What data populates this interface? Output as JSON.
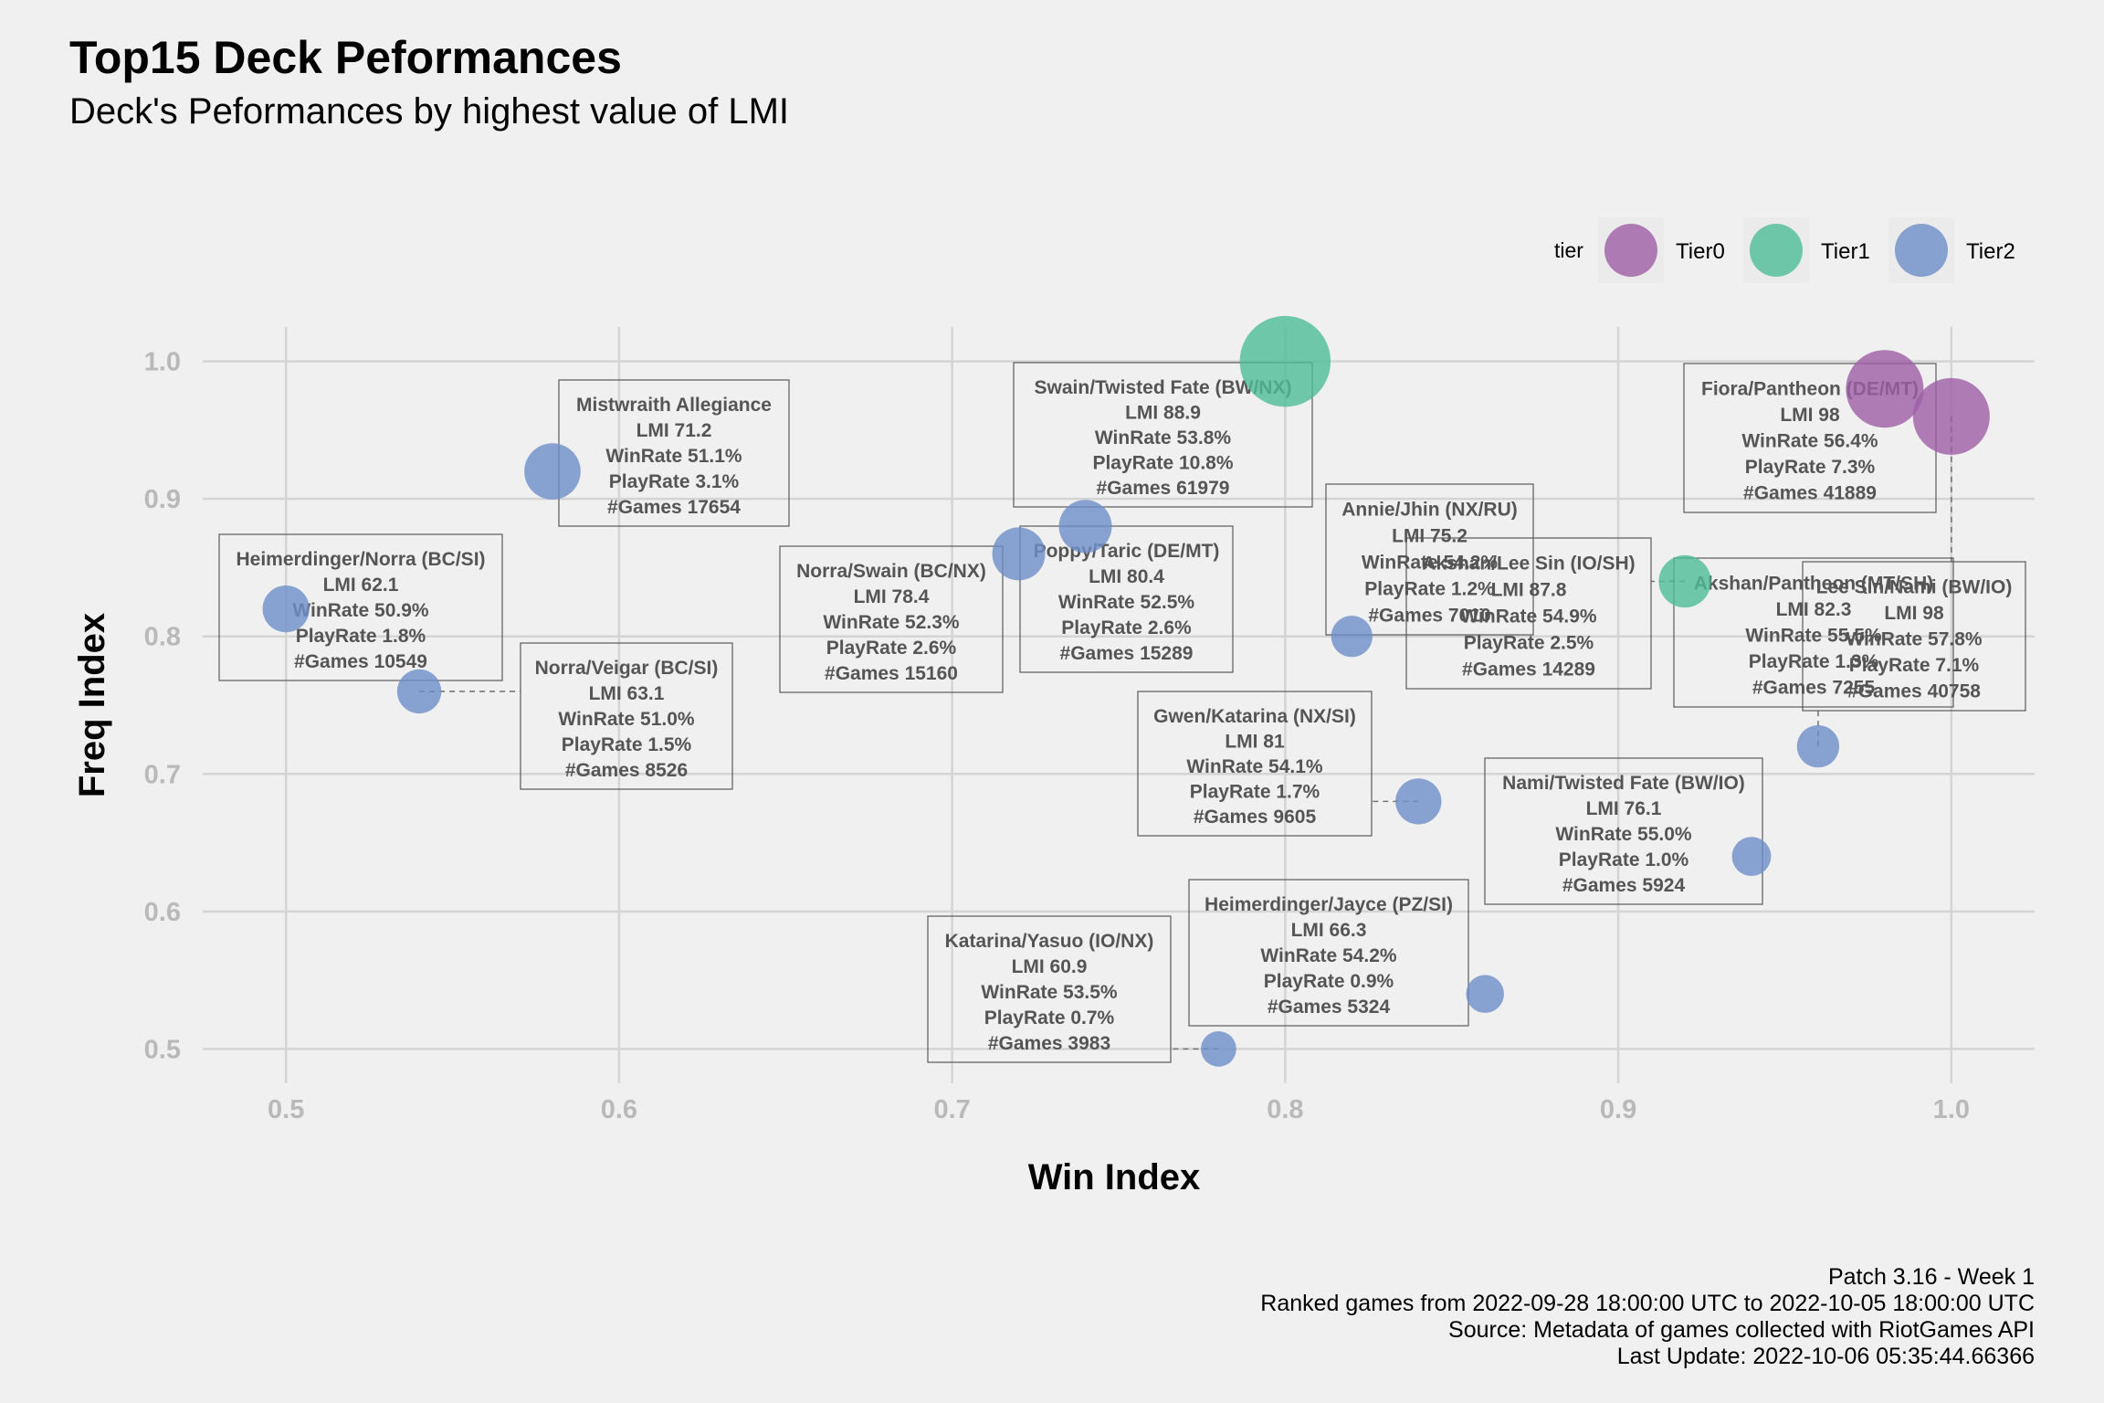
{
  "chart_data": {
    "type": "scatter",
    "title": "Top15 Deck Peformances",
    "subtitle": "Deck's Peformances by highest value of LMI",
    "xlabel": "Win Index",
    "ylabel": "Freq Index",
    "xlim": [
      0.475,
      1.025
    ],
    "ylim": [
      0.475,
      1.025
    ],
    "xticks": [
      "0.5",
      "0.6",
      "0.7",
      "0.8",
      "0.9",
      "1.0"
    ],
    "yticks": [
      "0.5",
      "0.6",
      "0.7",
      "0.8",
      "0.9",
      "1.0"
    ],
    "grid": true,
    "legend": {
      "title": "tier",
      "placement": "top-right",
      "entries": [
        {
          "name": "Tier0",
          "color": "#9e5ea6"
        },
        {
          "name": "Tier1",
          "color": "#4dbd97"
        },
        {
          "name": "Tier2",
          "color": "#6d8fc8"
        }
      ]
    },
    "points": [
      {
        "deck": "Lee Sin/Nami (BW/IO)",
        "x": 1.0,
        "y": 0.96,
        "tier": "Tier0",
        "playrate": 7.1,
        "lines": [
          "Lee Sin/Nami (BW/IO)",
          "LMI 98",
          "WinRate 57.8%",
          "PlayRate 7.1%",
          "#Games 40758"
        ]
      },
      {
        "deck": "Fiora/Pantheon (DE/MT)",
        "x": 0.98,
        "y": 0.98,
        "tier": "Tier0",
        "playrate": 7.3,
        "lines": [
          "Fiora/Pantheon (DE/MT)",
          "LMI 98",
          "WinRate 56.4%",
          "PlayRate 7.3%",
          "#Games 41889"
        ]
      },
      {
        "deck": "Swain/Twisted Fate (BW/NX)",
        "x": 0.8,
        "y": 1.0,
        "tier": "Tier1",
        "playrate": 10.8,
        "lines": [
          "Swain/Twisted Fate (BW/NX)",
          "LMI 88.9",
          "WinRate 53.8%",
          "PlayRate 10.8%",
          "#Games 61979"
        ]
      },
      {
        "deck": "Akshan/Lee Sin (IO/SH)",
        "x": 0.92,
        "y": 0.84,
        "tier": "Tier1",
        "playrate": 2.5,
        "lines": [
          "Akshan/Lee Sin (IO/SH)",
          "LMI 87.8",
          "WinRate 54.9%",
          "PlayRate 2.5%",
          "#Games 14289"
        ]
      },
      {
        "deck": "Akshan/Pantheon (MT/SH)",
        "x": 0.96,
        "y": 0.72,
        "tier": "Tier2",
        "playrate": 1.3,
        "lines": [
          "Akshan/Pantheon (MT/SH)",
          "LMI 82.3",
          "WinRate 55.5%",
          "PlayRate 1.3%",
          "#Games 7255"
        ]
      },
      {
        "deck": "Gwen/Katarina (NX/SI)",
        "x": 0.84,
        "y": 0.68,
        "tier": "Tier2",
        "playrate": 1.7,
        "lines": [
          "Gwen/Katarina (NX/SI)",
          "LMI 81",
          "WinRate 54.1%",
          "PlayRate 1.7%",
          "#Games 9605"
        ]
      },
      {
        "deck": "Poppy/Taric (DE/MT)",
        "x": 0.74,
        "y": 0.88,
        "tier": "Tier2",
        "playrate": 2.6,
        "lines": [
          "Poppy/Taric (DE/MT)",
          "LMI 80.4",
          "WinRate 52.5%",
          "PlayRate 2.6%",
          "#Games 15289"
        ]
      },
      {
        "deck": "Norra/Swain (BC/NX)",
        "x": 0.72,
        "y": 0.86,
        "tier": "Tier2",
        "playrate": 2.6,
        "lines": [
          "Norra/Swain (BC/NX)",
          "LMI 78.4",
          "WinRate 52.3%",
          "PlayRate 2.6%",
          "#Games 15160"
        ]
      },
      {
        "deck": "Nami/Twisted Fate (BW/IO)",
        "x": 0.94,
        "y": 0.64,
        "tier": "Tier2",
        "playrate": 1.0,
        "lines": [
          "Nami/Twisted Fate (BW/IO)",
          "LMI 76.1",
          "WinRate 55.0%",
          "PlayRate 1.0%",
          "#Games 5924"
        ]
      },
      {
        "deck": "Annie/Jhin (NX/RU)",
        "x": 0.82,
        "y": 0.8,
        "tier": "Tier2",
        "playrate": 1.2,
        "lines": [
          "Annie/Jhin (NX/RU)",
          "LMI 75.2",
          "WinRate 54.2%",
          "PlayRate 1.2%",
          "#Games 7010"
        ]
      },
      {
        "deck": "Mistwraith Allegiance",
        "x": 0.58,
        "y": 0.92,
        "tier": "Tier2",
        "playrate": 3.1,
        "lines": [
          "Mistwraith Allegiance",
          "LMI 71.2",
          "WinRate 51.1%",
          "PlayRate 3.1%",
          "#Games 17654"
        ]
      },
      {
        "deck": "Heimerdinger/Jayce (PZ/SI)",
        "x": 0.86,
        "y": 0.54,
        "tier": "Tier2",
        "playrate": 0.9,
        "lines": [
          "Heimerdinger/Jayce (PZ/SI)",
          "LMI 66.3",
          "WinRate 54.2%",
          "PlayRate 0.9%",
          "#Games 5324"
        ]
      },
      {
        "deck": "Norra/Veigar (BC/SI)",
        "x": 0.54,
        "y": 0.76,
        "tier": "Tier2",
        "playrate": 1.5,
        "lines": [
          "Norra/Veigar (BC/SI)",
          "LMI 63.1",
          "WinRate 51.0%",
          "PlayRate 1.5%",
          "#Games 8526"
        ]
      },
      {
        "deck": "Heimerdinger/Norra (BC/SI)",
        "x": 0.5,
        "y": 0.82,
        "tier": "Tier2",
        "playrate": 1.8,
        "lines": [
          "Heimerdinger/Norra (BC/SI)",
          "LMI 62.1",
          "WinRate 50.9%",
          "PlayRate 1.8%",
          "#Games 10549"
        ]
      },
      {
        "deck": "Katarina/Yasuo (IO/NX)",
        "x": 0.78,
        "y": 0.5,
        "tier": "Tier2",
        "playrate": 0.7,
        "lines": [
          "Katarina/Yasuo (IO/NX)",
          "LMI 60.9",
          "WinRate 53.5%",
          "PlayRate 0.7%",
          "#Games 3983"
        ]
      }
    ]
  },
  "caption": [
    "Patch 3.16 - Week 1",
    "Ranked games from 2022-09-28 18:00:00 UTC to 2022-10-05 18:00:00 UTC",
    "Source: Metadata of games collected with RiotGames API",
    "Last Update: 2022-10-06 05:35:44.66366"
  ]
}
